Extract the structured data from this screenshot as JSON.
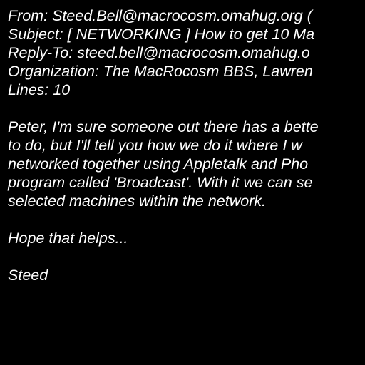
{
  "headers": [
    "From: Steed.Bell@macrocosm.omahug.org (",
    "Subject: [ NETWORKING ] How to get 10 Ma",
    "Reply-To: steed.bell@macrocosm.omahug.o",
    "Organization: The MacRocosm BBS, Lawren",
    "Lines: 10"
  ],
  "body": [
    [
      "Peter, I'm sure someone out there has a bette",
      "to do, but I'll tell you how we do it where I w",
      "networked together using Appletalk and Pho",
      "program called 'Broadcast'. With it we can se",
      "selected machines within the network."
    ],
    [
      "Hope that helps..."
    ],
    [
      "Steed"
    ]
  ]
}
